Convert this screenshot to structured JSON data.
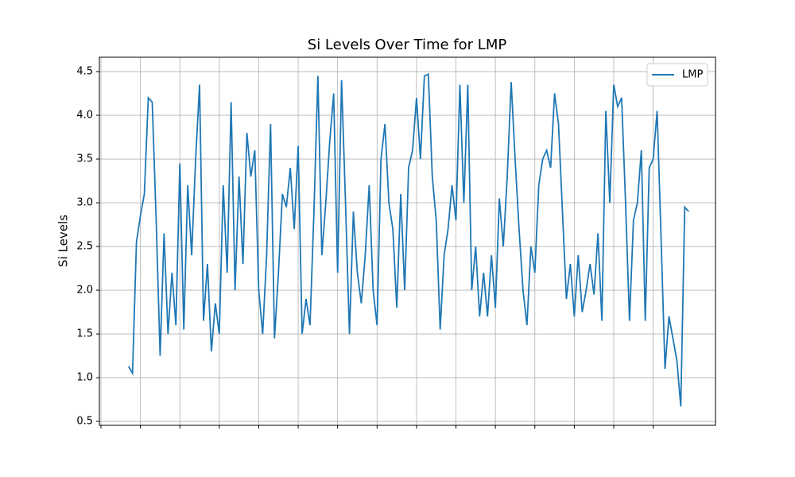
{
  "chart_data": {
    "type": "line",
    "title": "Si Levels Over Time for LMP",
    "ylabel": "Si Levels",
    "x": [
      7,
      8,
      9,
      10,
      11,
      12,
      13,
      14,
      15,
      16,
      17,
      18,
      19,
      20,
      21,
      22,
      23,
      24,
      25,
      26,
      27,
      28,
      29,
      30,
      31,
      32,
      33,
      34,
      35,
      36,
      37,
      38,
      39,
      40,
      41,
      42,
      43,
      44,
      45,
      46,
      47,
      48,
      49,
      50,
      51,
      52,
      53,
      54,
      55,
      56,
      57,
      58,
      59,
      60,
      61,
      62,
      63,
      64,
      65,
      66,
      67,
      68,
      69,
      70,
      71,
      72,
      73,
      74,
      75,
      76,
      77,
      78,
      79,
      80,
      81,
      82,
      83,
      84,
      85,
      86,
      87,
      88,
      89,
      90,
      91,
      92,
      93,
      94,
      95,
      96,
      97,
      98,
      99,
      100,
      101,
      102,
      103,
      104,
      105,
      106,
      107,
      108,
      109,
      110,
      111,
      112,
      113,
      114,
      115,
      116,
      117,
      118,
      119,
      120,
      121,
      122,
      123,
      124,
      125,
      126,
      127,
      128,
      129,
      130,
      131,
      132,
      133,
      134,
      135,
      136,
      137,
      138,
      139,
      140,
      141,
      142,
      143,
      144,
      145,
      146,
      147,
      148,
      149
    ],
    "series": [
      {
        "name": "LMP",
        "color": "#1f77b4",
        "values": [
          1.13,
          1.05,
          2.55,
          2.85,
          3.1,
          4.2,
          4.15,
          2.8,
          1.25,
          2.65,
          1.5,
          2.2,
          1.6,
          3.45,
          1.55,
          3.2,
          2.4,
          3.5,
          4.35,
          1.65,
          2.3,
          1.3,
          1.85,
          1.5,
          3.2,
          2.2,
          4.15,
          2.0,
          3.3,
          2.3,
          3.8,
          3.3,
          3.6,
          2.0,
          1.5,
          2.4,
          3.9,
          1.45,
          2.2,
          3.1,
          2.95,
          3.4,
          2.7,
          3.65,
          1.5,
          1.9,
          1.6,
          2.9,
          4.45,
          2.4,
          3.0,
          3.7,
          4.25,
          2.2,
          4.4,
          3.0,
          1.5,
          2.9,
          2.2,
          1.85,
          2.4,
          3.2,
          2.0,
          1.6,
          3.5,
          3.9,
          3.0,
          2.7,
          1.8,
          3.1,
          2.0,
          3.4,
          3.6,
          4.2,
          3.5,
          4.45,
          4.47,
          3.3,
          2.8,
          1.55,
          2.4,
          2.7,
          3.2,
          2.8,
          4.35,
          3.0,
          4.35,
          2.0,
          2.5,
          1.7,
          2.2,
          1.7,
          2.4,
          1.8,
          3.05,
          2.5,
          3.3,
          4.38,
          3.5,
          2.7,
          2.0,
          1.6,
          2.5,
          2.2,
          3.2,
          3.5,
          3.6,
          3.4,
          4.25,
          3.9,
          2.9,
          1.9,
          2.3,
          1.7,
          2.4,
          1.75,
          2.0,
          2.3,
          1.95,
          2.65,
          1.65,
          4.05,
          3.0,
          4.35,
          4.1,
          4.2,
          3.0,
          1.65,
          2.8,
          3.0,
          3.6,
          1.65,
          3.4,
          3.5,
          4.05,
          2.6,
          1.1,
          1.7,
          1.45,
          1.2,
          0.67,
          2.95,
          2.9
        ]
      }
    ],
    "xlim": [
      -0.4,
      155.8
    ],
    "xticks": [
      0,
      10,
      20,
      30,
      40,
      50,
      60,
      70,
      80,
      90,
      100,
      110,
      120,
      130,
      140
    ],
    "ylim": [
      0.455,
      4.664
    ],
    "yticks": [
      0.5,
      {
        "value": 1,
        "label": "1.0"
      },
      1.5,
      {
        "value": 2,
        "label": "2.0"
      },
      2.5,
      {
        "value": 3,
        "label": "3.0"
      },
      3.5,
      {
        "value": 4,
        "label": "4.0"
      },
      4.5
    ],
    "grid": true,
    "legend": "upper right"
  }
}
